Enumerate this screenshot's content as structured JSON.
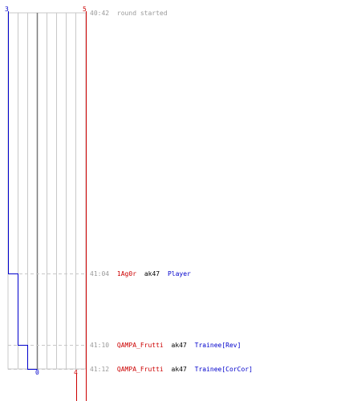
{
  "header": {
    "blue_count": "3",
    "red_count": "5",
    "start_time": "40:42",
    "start_label": "round started"
  },
  "footer": {
    "blue_count": "0",
    "red_count": "4"
  },
  "colors": {
    "blue_team": "#0000cc",
    "red_team": "#cc0000",
    "grid": "#c8c8c8",
    "dashed": "#c8c8c8",
    "timestamp": "#9a9a9a",
    "weapon": "#000000"
  },
  "events": [
    {
      "time": "41:04",
      "killer": "1Ag0r",
      "weapon": "ak47",
      "victim": "Player",
      "blue_after": 2
    },
    {
      "time": "41:10",
      "killer": "QAMPA_Frutti",
      "weapon": "ak47",
      "victim": "Trainee[Rev]",
      "blue_after": 1
    },
    {
      "time": "41:12",
      "killer": "QAMPA_Frutti",
      "weapon": "ak47",
      "victim": "Trainee[CorCor]",
      "blue_after": 0
    }
  ]
}
